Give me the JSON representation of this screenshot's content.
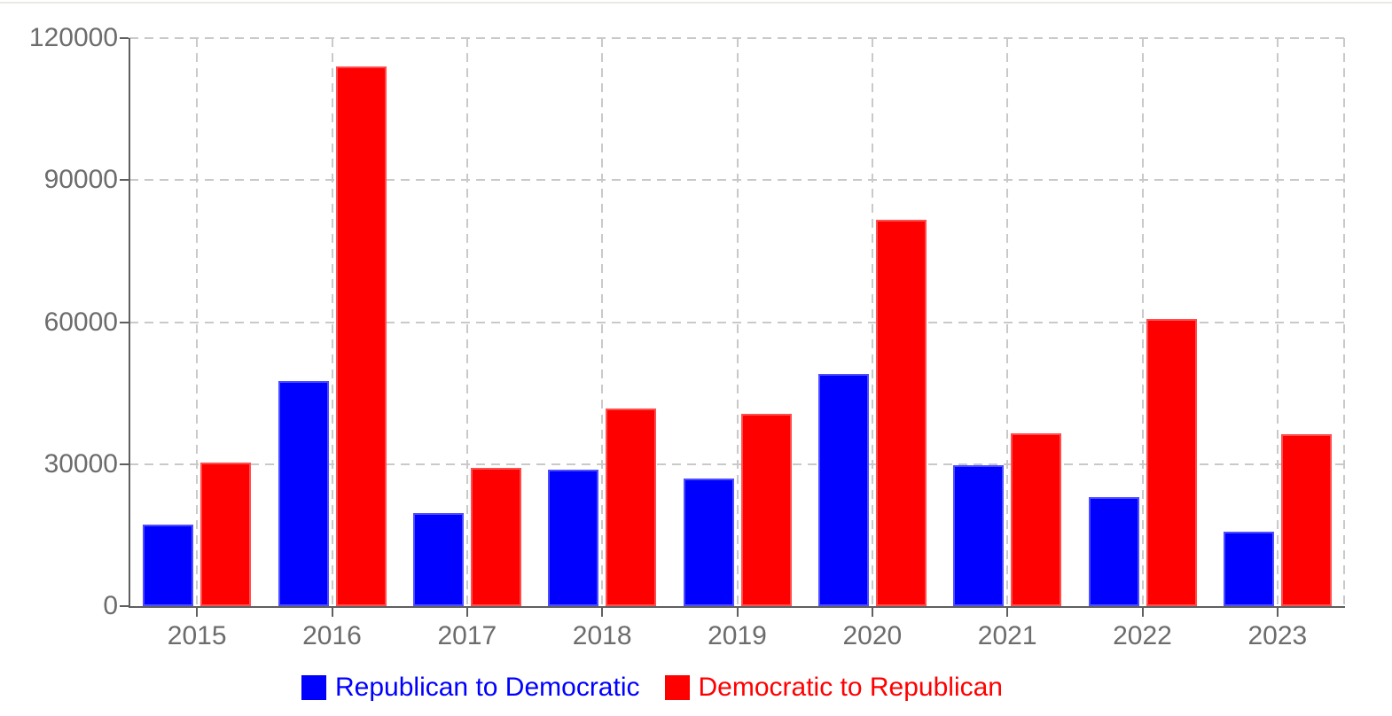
{
  "chart_data": {
    "type": "bar",
    "title": "",
    "categories": [
      "2015",
      "2016",
      "2017",
      "2018",
      "2019",
      "2020",
      "2021",
      "2022",
      "2023"
    ],
    "series": [
      {
        "name": "Republican to Democratic",
        "color": "#0000ff",
        "values": [
          17300,
          47600,
          19700,
          28900,
          26900,
          49100,
          29700,
          23100,
          15700
        ]
      },
      {
        "name": "Democratic to Republican",
        "color": "#ff0000",
        "values": [
          30400,
          114100,
          29300,
          41800,
          40700,
          81700,
          36500,
          60600,
          36400
        ]
      }
    ],
    "xlabel": "",
    "ylabel": "",
    "ylim": [
      0,
      120000
    ],
    "y_ticks": [
      0,
      30000,
      60000,
      90000,
      120000
    ],
    "grid": true,
    "gridline_style": "dashed",
    "legend_position": "bottom"
  },
  "colors": {
    "axis": "#5f5f5f",
    "grid": "#c9c9c9",
    "tick_label": "#6c6c6c",
    "background": "#ffffff",
    "top_border": "#e9e9e5"
  }
}
